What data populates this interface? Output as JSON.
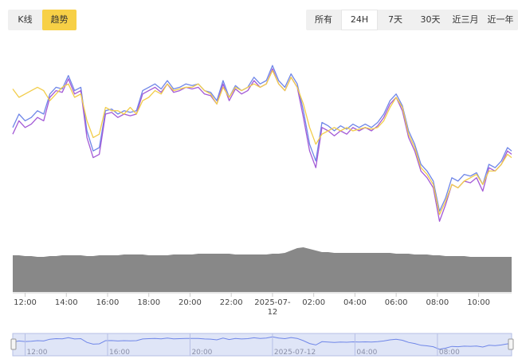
{
  "view_toggle": {
    "kline_label": "K线",
    "trend_label": "趋势",
    "active": "趋势"
  },
  "range_tabs": [
    {
      "label": "所有",
      "active": false
    },
    {
      "label": "24H",
      "active": true
    },
    {
      "label": "7天",
      "active": false
    },
    {
      "label": "30天",
      "active": false
    },
    {
      "label": "近三月",
      "active": false
    },
    {
      "label": "近一年",
      "active": false
    }
  ],
  "colors": {
    "series_blue": "#6f86e8",
    "series_purple": "#a35ad6",
    "series_yellow": "#f2cd4a",
    "volume": "#888888",
    "active_toggle": "#f7d046",
    "navigator_fill": "#c9d3f2",
    "navigator_line": "#6f86e8"
  },
  "chart_data": {
    "type": "line",
    "x_tick_labels": [
      "12:00",
      "14:00",
      "16:00",
      "18:00",
      "20:00",
      "22:00",
      "2025-07-12",
      "02:00",
      "04:00",
      "06:00",
      "08:00",
      "10:00"
    ],
    "x_range_hours": [
      -0.6,
      23.6
    ],
    "y_range": [
      0,
      100
    ],
    "legend": "none",
    "grid": false,
    "x_hours": [
      -0.6,
      -0.3,
      0.0,
      0.3,
      0.6,
      0.9,
      1.2,
      1.5,
      1.8,
      2.1,
      2.4,
      2.7,
      3.0,
      3.3,
      3.6,
      3.9,
      4.2,
      4.5,
      4.8,
      5.1,
      5.4,
      5.7,
      6.0,
      6.3,
      6.6,
      6.9,
      7.2,
      7.5,
      7.8,
      8.1,
      8.4,
      8.7,
      9.0,
      9.3,
      9.6,
      9.9,
      10.2,
      10.5,
      10.8,
      11.1,
      11.4,
      11.7,
      12.0,
      12.3,
      12.6,
      12.9,
      13.2,
      13.5,
      13.8,
      14.1,
      14.4,
      14.7,
      15.0,
      15.3,
      15.6,
      15.9,
      16.2,
      16.5,
      16.8,
      17.1,
      17.4,
      17.7,
      18.0,
      18.3,
      18.6,
      18.9,
      19.2,
      19.5,
      19.8,
      20.1,
      20.4,
      20.7,
      21.0,
      21.3,
      21.6,
      21.9,
      22.2,
      22.5,
      22.8,
      23.1,
      23.4,
      23.6
    ],
    "series": [
      {
        "values": [
          62,
          70,
          66,
          68,
          72,
          70,
          82,
          86,
          85,
          93,
          84,
          86,
          60,
          48,
          50,
          72,
          73,
          70,
          72,
          71,
          72,
          84,
          86,
          88,
          85,
          90,
          85,
          86,
          88,
          87,
          88,
          84,
          83,
          78,
          90,
          80,
          87,
          84,
          86,
          92,
          88,
          90,
          99,
          90,
          86,
          94,
          88,
          72,
          52,
          42,
          65,
          63,
          60,
          63,
          61,
          64,
          62,
          64,
          62,
          65,
          70,
          78,
          82,
          75,
          60,
          52,
          40,
          36,
          30,
          12,
          20,
          32,
          30,
          34,
          33,
          35,
          28,
          40,
          38,
          42,
          50,
          48
        ]
      },
      {
        "values": [
          58,
          66,
          62,
          64,
          68,
          66,
          80,
          84,
          83,
          91,
          82,
          84,
          56,
          44,
          46,
          70,
          71,
          68,
          70,
          69,
          70,
          82,
          84,
          86,
          83,
          88,
          83,
          84,
          86,
          85,
          86,
          82,
          81,
          76,
          88,
          78,
          85,
          82,
          84,
          90,
          86,
          88,
          97,
          88,
          84,
          92,
          86,
          68,
          48,
          38,
          62,
          60,
          57,
          60,
          58,
          62,
          60,
          62,
          60,
          63,
          68,
          76,
          80,
          72,
          56,
          48,
          36,
          32,
          26,
          6,
          16,
          28,
          26,
          30,
          29,
          32,
          24,
          38,
          36,
          40,
          48,
          46
        ]
      },
      {
        "values": [
          85,
          80,
          82,
          84,
          86,
          84,
          78,
          82,
          86,
          88,
          80,
          82,
          66,
          56,
          58,
          74,
          72,
          72,
          70,
          74,
          70,
          78,
          80,
          84,
          82,
          88,
          84,
          85,
          86,
          86,
          88,
          84,
          82,
          76,
          86,
          80,
          86,
          84,
          86,
          88,
          86,
          88,
          96,
          88,
          84,
          92,
          86,
          76,
          62,
          52,
          58,
          60,
          62,
          60,
          62,
          60,
          61,
          62,
          61,
          62,
          66,
          74,
          80,
          74,
          58,
          50,
          38,
          34,
          28,
          10,
          18,
          28,
          26,
          30,
          32,
          34,
          28,
          36,
          36,
          40,
          46,
          44
        ]
      }
    ],
    "volume_values": [
      46,
      46,
      45,
      45,
      44,
      44,
      45,
      45,
      46,
      46,
      46,
      46,
      45,
      45,
      46,
      46,
      46,
      46,
      47,
      47,
      47,
      47,
      46,
      46,
      46,
      46,
      47,
      47,
      47,
      47,
      48,
      48,
      48,
      48,
      48,
      48,
      47,
      47,
      47,
      47,
      47,
      47,
      48,
      48,
      49,
      52,
      55,
      56,
      54,
      52,
      50,
      50,
      49,
      49,
      49,
      49,
      49,
      49,
      49,
      49,
      49,
      49,
      48,
      48,
      48,
      47,
      47,
      47,
      46,
      46,
      45,
      45,
      45,
      45,
      44,
      44,
      44,
      44,
      44,
      44,
      44,
      44
    ],
    "navigator": {
      "tick_labels": [
        "12:00",
        "16:00",
        "20:00",
        "2025-07-12",
        "04:00",
        "08:00"
      ],
      "tick_hours": [
        0,
        4,
        8,
        12,
        16,
        20
      ]
    }
  }
}
